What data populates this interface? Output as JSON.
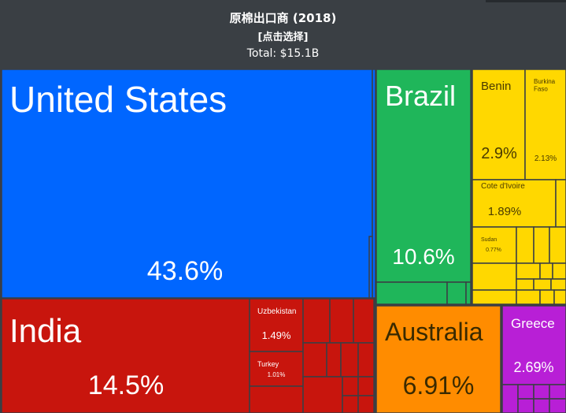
{
  "header": {
    "title": "原棉出口商 (2018)",
    "subtitle": "[点击选择]",
    "total": "Total: $15.1B"
  },
  "colors": {
    "background": "#3a3f44",
    "north_america": "#0066ff",
    "asia": "#c8150d",
    "south_america": "#1fb65a",
    "africa": "#ffd800",
    "oceania": "#ff8c00",
    "europe": "#b81fd6"
  },
  "chart_data": {
    "type": "treemap",
    "title": "原棉出口商 (2018)",
    "total": "$15.1B",
    "items": [
      {
        "name": "United States",
        "share_pct": 43.6,
        "label": "43.6%",
        "group": "north_america"
      },
      {
        "name": "India",
        "share_pct": 14.5,
        "label": "14.5%",
        "group": "asia"
      },
      {
        "name": "Uzbekistan",
        "share_pct": 1.49,
        "label": "1.49%",
        "group": "asia"
      },
      {
        "name": "Turkey",
        "share_pct": 1.01,
        "label": "1.01%",
        "group": "asia"
      },
      {
        "name": "Brazil",
        "share_pct": 10.6,
        "label": "10.6%",
        "group": "south_america"
      },
      {
        "name": "Benin",
        "share_pct": 2.9,
        "label": "2.9%",
        "group": "africa"
      },
      {
        "name": "Burkina Faso",
        "share_pct": 2.13,
        "label": "2.13%",
        "group": "africa"
      },
      {
        "name": "Cote d'Ivoire",
        "share_pct": 1.89,
        "label": "1.89%",
        "group": "africa"
      },
      {
        "name": "Sudan",
        "share_pct": 0.77,
        "label": "0.77%",
        "group": "africa"
      },
      {
        "name": "Australia",
        "share_pct": 6.91,
        "label": "6.91%",
        "group": "oceania"
      },
      {
        "name": "Greece",
        "share_pct": 2.69,
        "label": "2.69%",
        "group": "europe"
      }
    ]
  }
}
